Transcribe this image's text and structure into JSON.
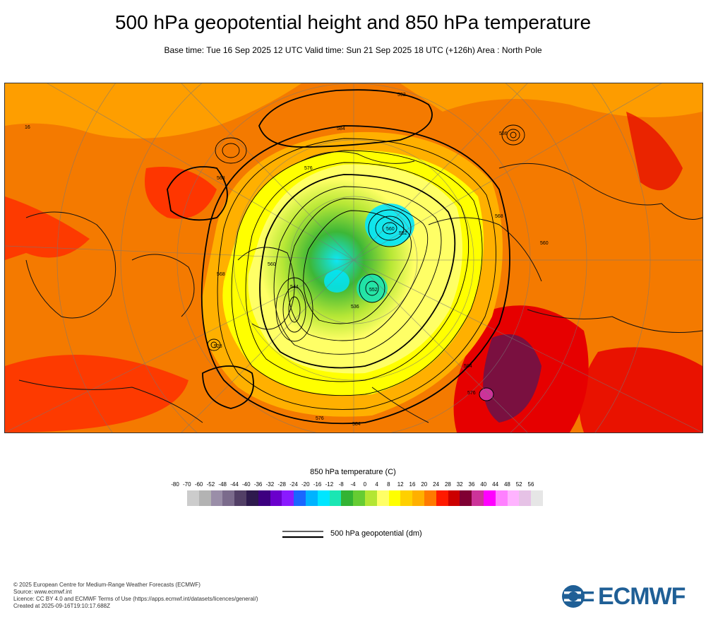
{
  "title": "500 hPa geopotential height and 850 hPa temperature",
  "subtitle": "Base time: Tue 16 Sep 2025 12 UTC Valid time: Sun 21 Sep 2025 18 UTC (+126h) Area : North Pole",
  "map": {
    "contour_labels": [
      "592",
      "584",
      "576",
      "560",
      "552",
      "544",
      "536",
      "568",
      "560",
      "568",
      "552",
      "560",
      "584",
      "576",
      "536",
      "568",
      "528",
      "16",
      "584",
      "576"
    ]
  },
  "colorbar": {
    "title": "850 hPa temperature (C)",
    "ticks": [
      "-80",
      "-70",
      "-60",
      "-52",
      "-48",
      "-44",
      "-40",
      "-36",
      "-32",
      "-28",
      "-24",
      "-20",
      "-16",
      "-12",
      "-8",
      "-4",
      "0",
      "4",
      "8",
      "12",
      "16",
      "20",
      "24",
      "28",
      "32",
      "36",
      "40",
      "44",
      "48",
      "52",
      "56"
    ],
    "colors": [
      "#e6e6e6",
      "#cccccc",
      "#b3b3b3",
      "#9a8ea8",
      "#7b6b8c",
      "#523f66",
      "#2e1a4d",
      "#3d0080",
      "#6a00cc",
      "#8a1aff",
      "#1a66ff",
      "#00b3ff",
      "#00e6ff",
      "#1ae6b3",
      "#33b333",
      "#66cc33",
      "#b3e633",
      "#ffff66",
      "#ffff00",
      "#ffd000",
      "#ffb000",
      "#ff7a00",
      "#ff1a00",
      "#cc0000",
      "#800033",
      "#cc3399",
      "#ff00ff",
      "#ff80ff",
      "#ffb3ff",
      "#e6c2e6",
      "#e6e6e6"
    ]
  },
  "legend": {
    "label": "500 hPa geopotential (dm)"
  },
  "footer": {
    "line1": "© 2025 European Centre for Medium-Range Weather Forecasts (ECMWF)",
    "line2": "Source: www.ecmwf.int",
    "line3": "Licence: CC BY 4.0 and ECMWF Terms of Use (https://apps.ecmwf.int/datasets/licences/general/)",
    "line4": "Created at 2025-09-16T19:10:17.688Z"
  },
  "logo": {
    "text": "ECMWF",
    "color": "#1f5f96"
  }
}
